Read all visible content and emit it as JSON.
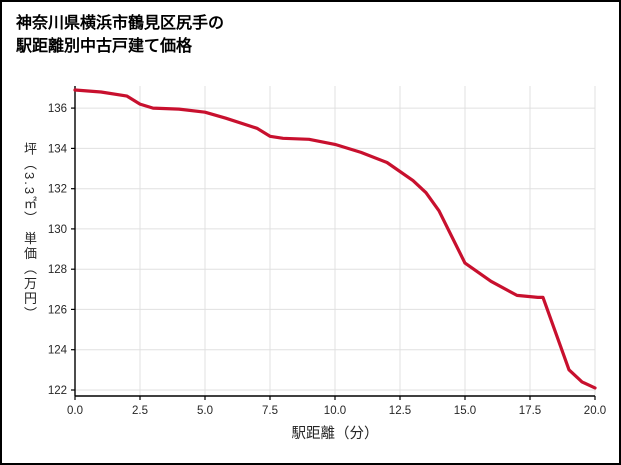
{
  "page": {
    "background": "#ffffff",
    "border_color": "#000000"
  },
  "title": {
    "line1": "神奈川県横浜市鶴見区尻手の",
    "line2": "駅距離別中古戸建て価格"
  },
  "chart_data": {
    "type": "line",
    "title": "神奈川県横浜市鶴見区尻手の駅距離別中古戸建て価格",
    "xlabel": "駅距離（分）",
    "ylabel": "坪（3.3㎡） 単価（万円）",
    "x": [
      0,
      1,
      2,
      2.5,
      3,
      4,
      5,
      5.8,
      7,
      7.5,
      8,
      9,
      10,
      11,
      12,
      13,
      13.5,
      14,
      14.5,
      15,
      16,
      17,
      17.8,
      18,
      19,
      19.5,
      20
    ],
    "y": [
      136.9,
      136.8,
      136.6,
      136.2,
      136.0,
      135.95,
      135.8,
      135.5,
      135.0,
      134.6,
      134.5,
      134.45,
      134.2,
      133.8,
      133.3,
      132.4,
      131.8,
      130.9,
      129.6,
      128.3,
      127.4,
      126.7,
      126.6,
      126.6,
      123.0,
      122.4,
      122.1
    ],
    "xlim": [
      0,
      20
    ],
    "ylim": [
      121.7,
      137.1
    ],
    "xtick_values": [
      0,
      2.5,
      5,
      7.5,
      10,
      12.5,
      15,
      17.5,
      20
    ],
    "xtick_labels": [
      "0.0",
      "2.5",
      "5.0",
      "7.5",
      "10.0",
      "12.5",
      "15.0",
      "17.5",
      "20.0"
    ],
    "ytick_values": [
      122,
      124,
      126,
      128,
      130,
      132,
      134,
      136
    ],
    "ytick_labels": [
      "122",
      "124",
      "126",
      "128",
      "130",
      "132",
      "134",
      "136"
    ],
    "grid": true,
    "legend_position": "none",
    "line_color": "#c8102e",
    "line_width": 3.2,
    "grid_color": "#e0e0e0",
    "axis_color": "#000000",
    "tick_label_color": "#262626"
  }
}
